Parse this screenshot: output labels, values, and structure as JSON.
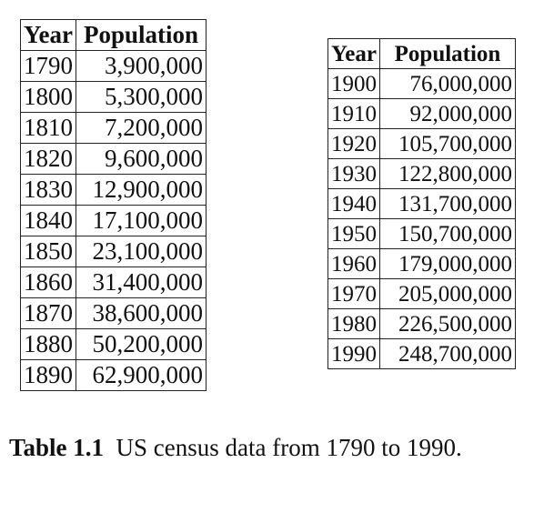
{
  "caption": {
    "label": "Table 1.1",
    "text": "US census data from 1790 to 1990."
  },
  "tables": [
    {
      "headers": [
        "Year",
        "Population"
      ],
      "rows": [
        [
          "1790",
          "3,900,000"
        ],
        [
          "1800",
          "5,300,000"
        ],
        [
          "1810",
          "7,200,000"
        ],
        [
          "1820",
          "9,600,000"
        ],
        [
          "1830",
          "12,900,000"
        ],
        [
          "1840",
          "17,100,000"
        ],
        [
          "1850",
          "23,100,000"
        ],
        [
          "1860",
          "31,400,000"
        ],
        [
          "1870",
          "38,600,000"
        ],
        [
          "1880",
          "50,200,000"
        ],
        [
          "1890",
          "62,900,000"
        ]
      ]
    },
    {
      "headers": [
        "Year",
        "Population"
      ],
      "rows": [
        [
          "1900",
          "76,000,000"
        ],
        [
          "1910",
          "92,000,000"
        ],
        [
          "1920",
          "105,700,000"
        ],
        [
          "1930",
          "122,800,000"
        ],
        [
          "1940",
          "131,700,000"
        ],
        [
          "1950",
          "150,700,000"
        ],
        [
          "1960",
          "179,000,000"
        ],
        [
          "1970",
          "205,000,000"
        ],
        [
          "1980",
          "226,500,000"
        ],
        [
          "1990",
          "248,700,000"
        ]
      ]
    }
  ]
}
